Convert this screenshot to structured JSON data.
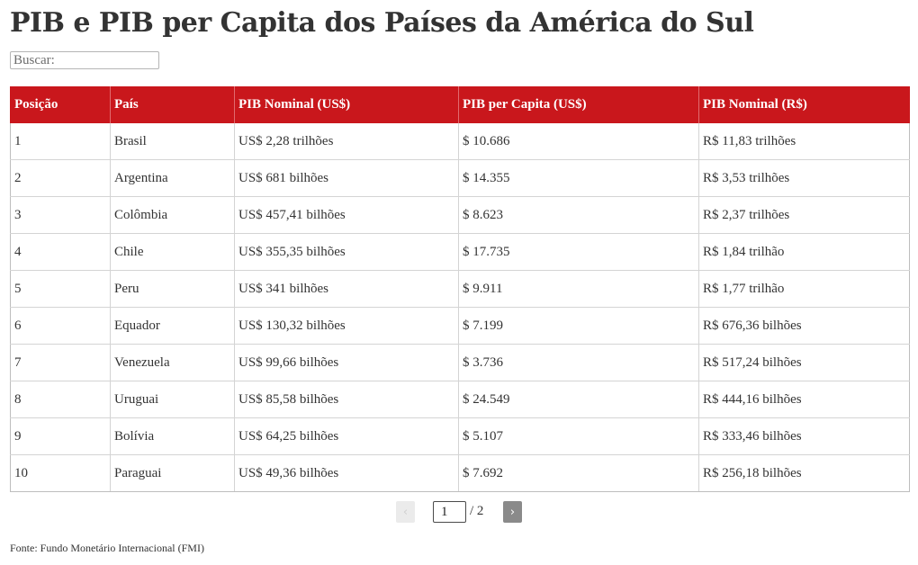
{
  "title": "PIB e PIB per Capita dos Países da América do Sul",
  "search": {
    "placeholder": "Buscar:"
  },
  "table": {
    "headers": [
      "Posição",
      "País",
      "PIB Nominal (US$)",
      "PIB per Capita (US$)",
      "PIB Nominal (R$)"
    ],
    "rows": [
      [
        "1",
        "Brasil",
        "US$ 2,28 trilhões",
        "$ 10.686",
        "R$ 11,83 trilhões"
      ],
      [
        "2",
        "Argentina",
        "US$ 681 bilhões",
        "$ 14.355",
        "R$ 3,53 trilhões"
      ],
      [
        "3",
        "Colômbia",
        "US$ 457,41 bilhões",
        "$ 8.623",
        "R$ 2,37 trilhões"
      ],
      [
        "4",
        "Chile",
        "US$ 355,35 bilhões",
        "$ 17.735",
        "R$ 1,84 trilhão"
      ],
      [
        "5",
        "Peru",
        "US$ 341 bilhões",
        "$ 9.911",
        "R$ 1,77 trilhão"
      ],
      [
        "6",
        "Equador",
        "US$ 130,32 bilhões",
        "$ 7.199",
        "R$ 676,36 bilhões"
      ],
      [
        "7",
        "Venezuela",
        "US$ 99,66 bilhões",
        "$ 3.736",
        "R$ 517,24 bilhões"
      ],
      [
        "8",
        "Uruguai",
        "US$ 85,58 bilhões",
        "$ 24.549",
        "R$ 444,16 bilhões"
      ],
      [
        "9",
        "Bolívia",
        "US$ 64,25 bilhões",
        "$ 5.107",
        "R$ 333,46 bilhões"
      ],
      [
        "10",
        "Paraguai",
        "US$ 49,36 bilhões",
        "$ 7.692",
        "R$ 256,18 bilhões"
      ]
    ]
  },
  "pagination": {
    "prev_label": "‹",
    "next_label": "›",
    "current_page": "1",
    "total_label": "/ 2"
  },
  "source": "Fonte: Fundo Monetário Internacional (FMI)",
  "colors": {
    "header_bg": "#c9171c",
    "header_text": "#ffffff",
    "prev_bg": "#ebebeb",
    "next_bg": "#8a8a8a"
  }
}
